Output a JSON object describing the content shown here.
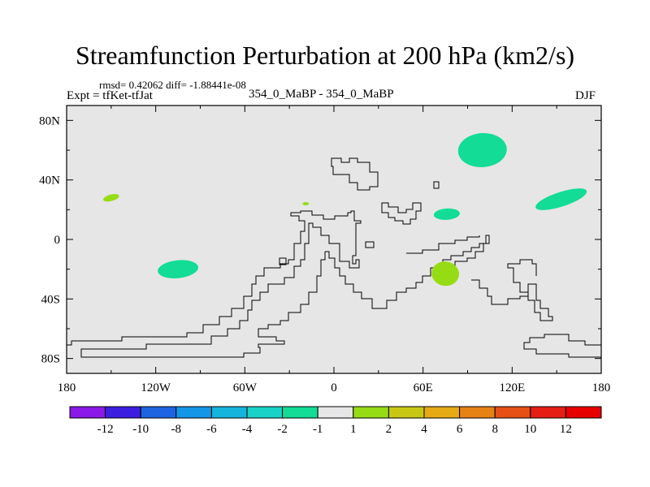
{
  "title": "Streamfunction Perturbation at 200 hPa (km2/s)",
  "stats_text": "rmsd= 0.42062  diff= -1.88441e-08",
  "experiment_label": "Expt = tfKet-tfJat",
  "case_label": "354_0_MaBP - 354_0_MaBP",
  "season_label": "DJF",
  "map": {
    "background_color": "#e6e6e6",
    "coastline_color": "#000000",
    "longitude_ticks": [
      "180",
      "120W",
      "60W",
      "0",
      "60E",
      "120E",
      "180"
    ],
    "latitude_ticks": [
      "80N",
      "40N",
      "0",
      "40S",
      "80S"
    ]
  },
  "colorbar": {
    "labels": [
      "-12",
      "-10",
      "-8",
      "-6",
      "-4",
      "-2",
      "-1",
      "1",
      "2",
      "4",
      "6",
      "8",
      "10",
      "12"
    ],
    "colors": [
      "#8a18e8",
      "#3c1ee0",
      "#1e64e0",
      "#1496e6",
      "#14b4dc",
      "#18d2c8",
      "#12dc96",
      "#e6e6e6",
      "#96dc14",
      "#c8c814",
      "#e6aa14",
      "#e68214",
      "#e65014",
      "#e61e14",
      "#e60000"
    ]
  },
  "anomalies": [
    {
      "name": "anomaly-north-pacific",
      "lon": 100,
      "lat": 60,
      "range": "-2 to -1",
      "color": "#12dc96"
    },
    {
      "name": "anomaly-west-pacific",
      "lon": 153,
      "lat": 27,
      "range": "-2 to -1",
      "color": "#12dc96"
    },
    {
      "name": "anomaly-south-asia",
      "lon": 76,
      "lat": 17,
      "range": "-2 to -1",
      "color": "#12dc96"
    },
    {
      "name": "anomaly-south-pacific",
      "lon": -105,
      "lat": -20,
      "range": "-2 to -1",
      "color": "#12dc96"
    },
    {
      "name": "anomaly-indian-ocean",
      "lon": 75,
      "lat": -23,
      "range": "1 to 2",
      "color": "#96dc14"
    },
    {
      "name": "anomaly-north-east-pacific",
      "lon": -150,
      "lat": 28,
      "range": "1 to 2",
      "color": "#96dc14"
    },
    {
      "name": "anomaly-north-atlantic",
      "lon": -19,
      "lat": 24,
      "range": "1 to 2",
      "color": "#96dc14"
    }
  ]
}
